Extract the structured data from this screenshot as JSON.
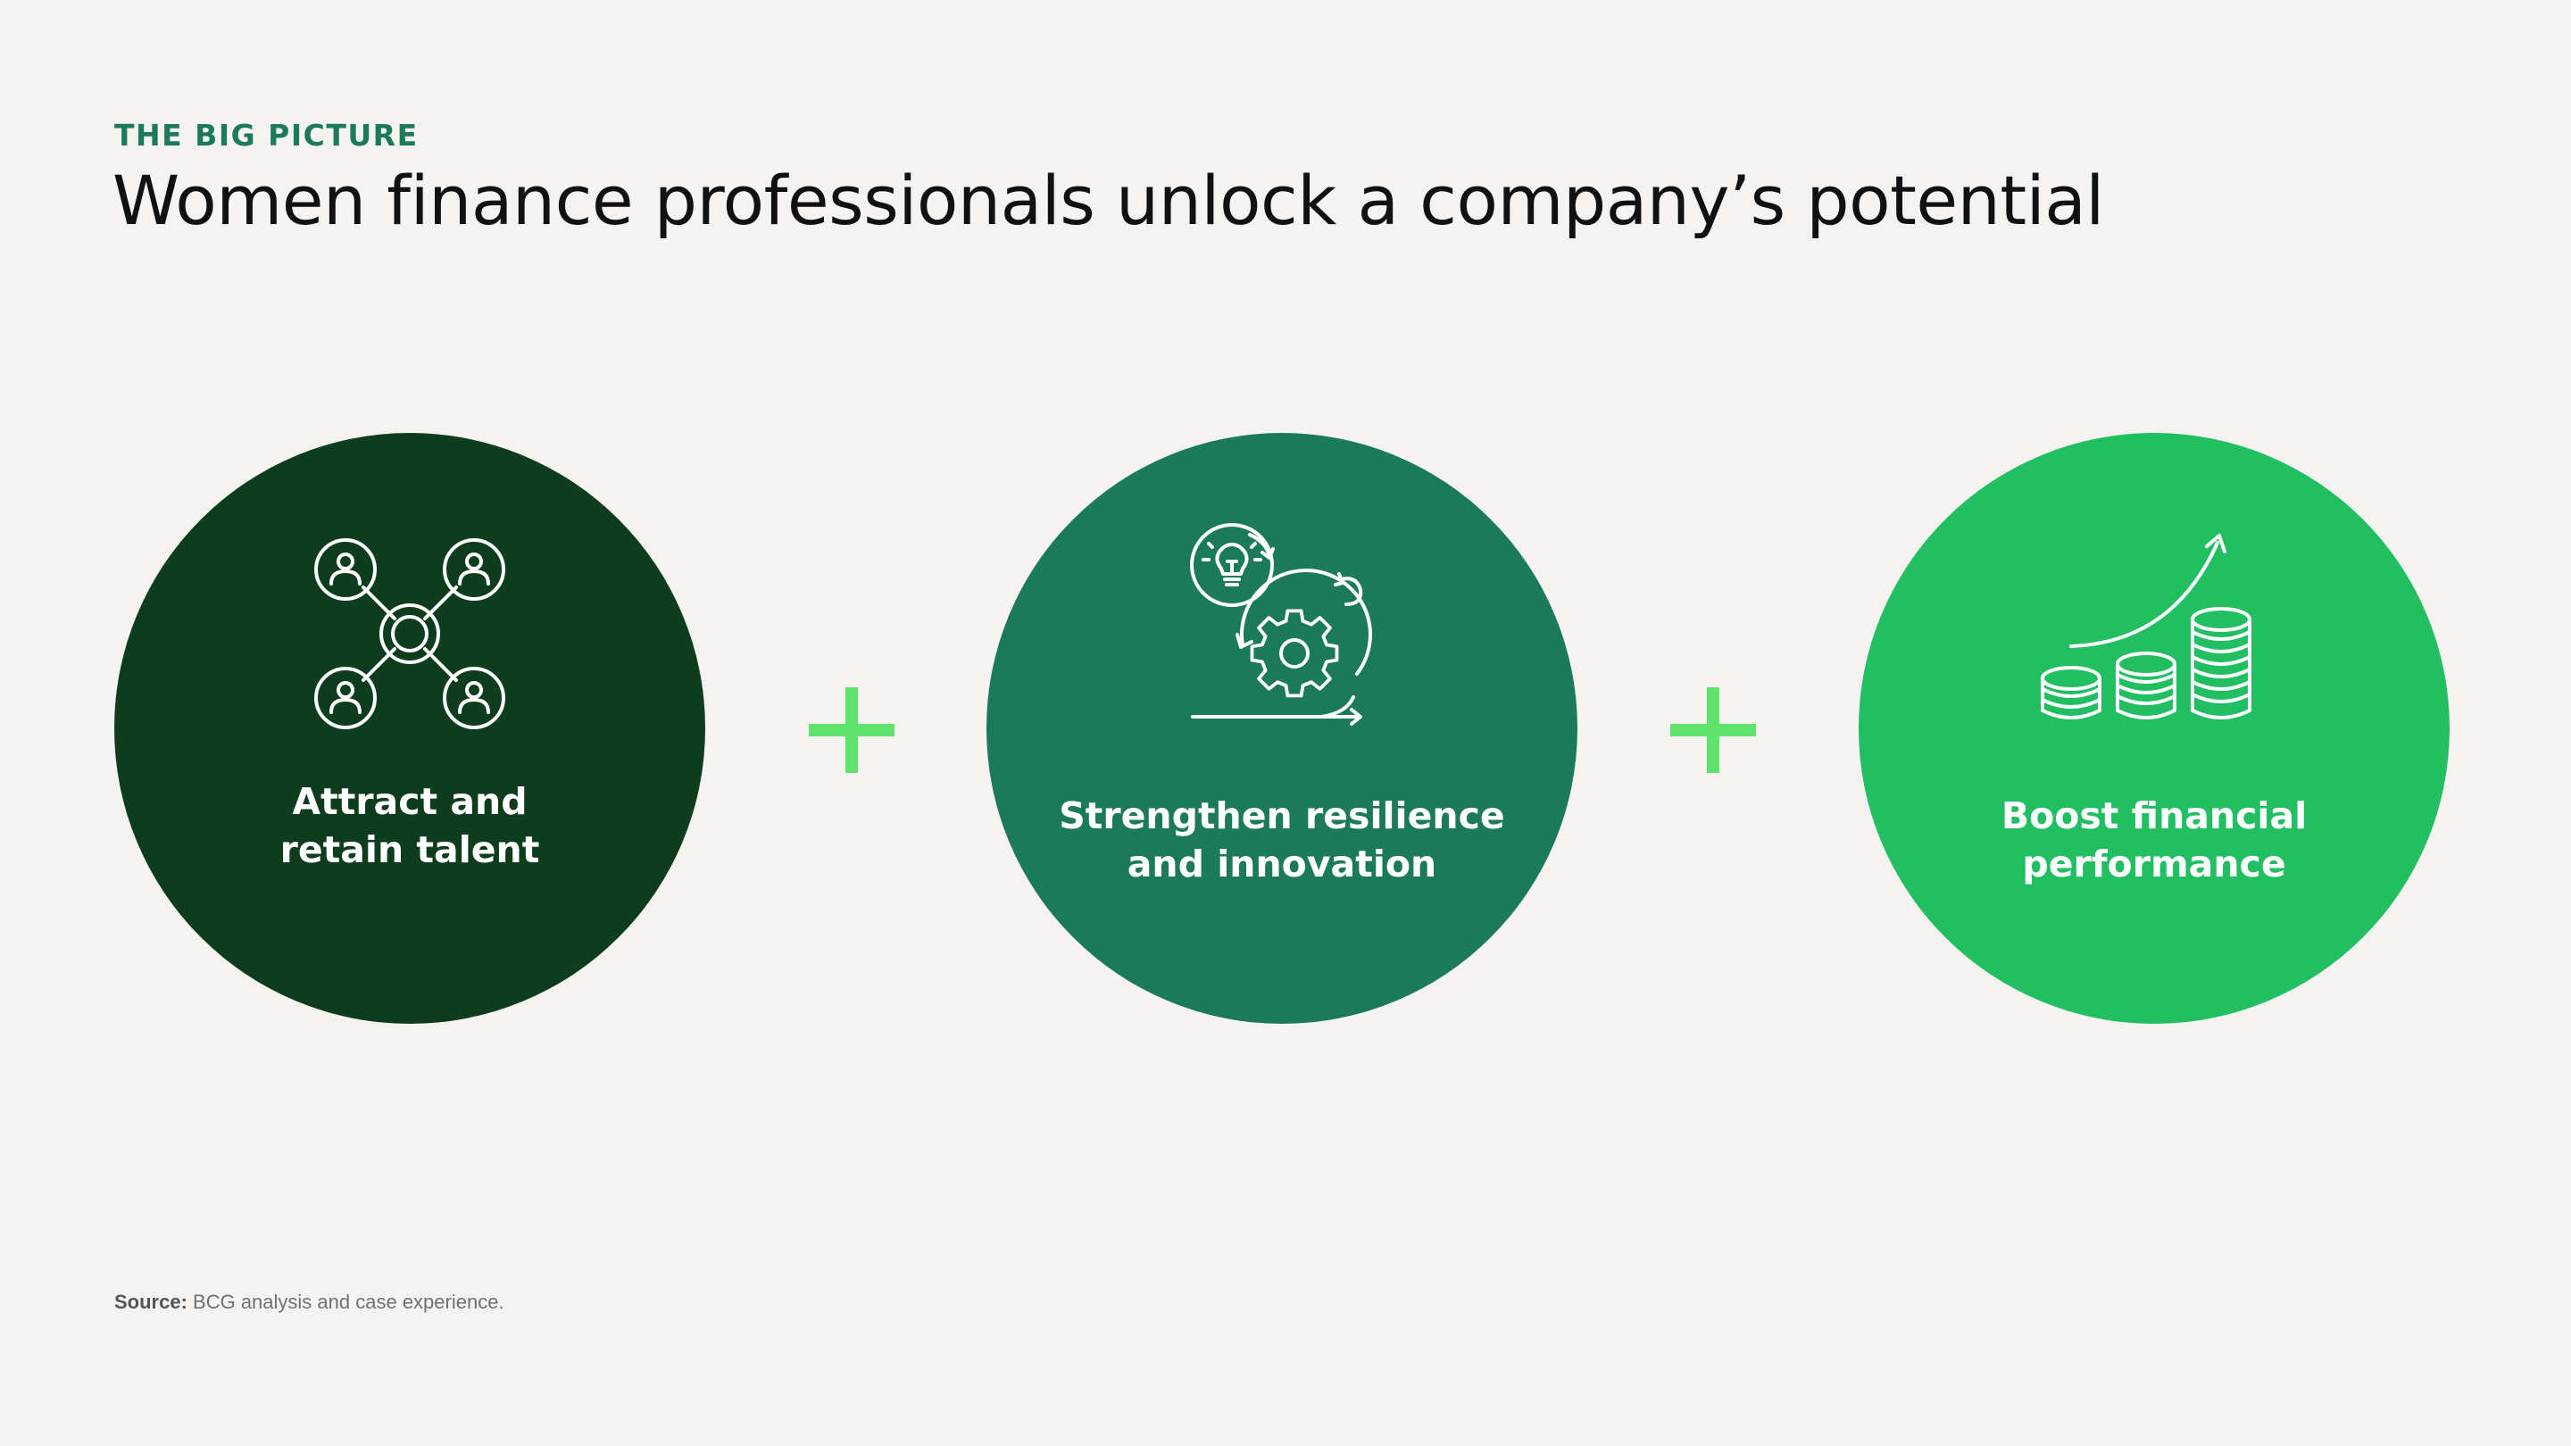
{
  "header": {
    "eyebrow": "THE BIG PICTURE",
    "title": "Women finance professionals unlock a company’s potential"
  },
  "pillars": [
    {
      "label_line1": "Attract and",
      "label_line2": "retain talent",
      "icon": "network-people-icon",
      "color": "#0e3d1d"
    },
    {
      "label_line1": "Strengthen resilience",
      "label_line2": "and innovation",
      "icon": "lightbulb-gear-cycle-icon",
      "color": "#1b7a5a"
    },
    {
      "label_line1": "Boost financial",
      "label_line2": "performance",
      "icon": "coins-growth-icon",
      "color": "#21bf61"
    }
  ],
  "connectors": {
    "symbol": "plus-icon",
    "color": "#5ee36c"
  },
  "footer": {
    "source_label": "Source:",
    "source_text": " BCG analysis and case experience."
  }
}
